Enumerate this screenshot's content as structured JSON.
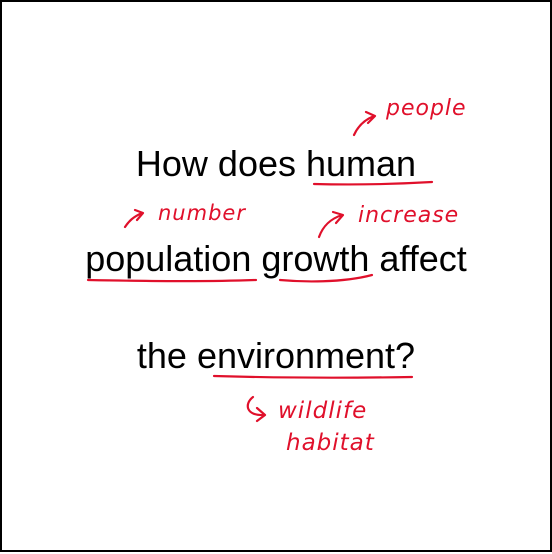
{
  "question": {
    "line1": "How does human",
    "line2": "population growth affect",
    "line3": "the environment?"
  },
  "annotations": {
    "people": "people",
    "number": "number",
    "increase": "increase",
    "wildlife": "wildlife",
    "habitat": "habitat"
  },
  "colors": {
    "ink": "#000000",
    "annotation": "#e0102b"
  }
}
